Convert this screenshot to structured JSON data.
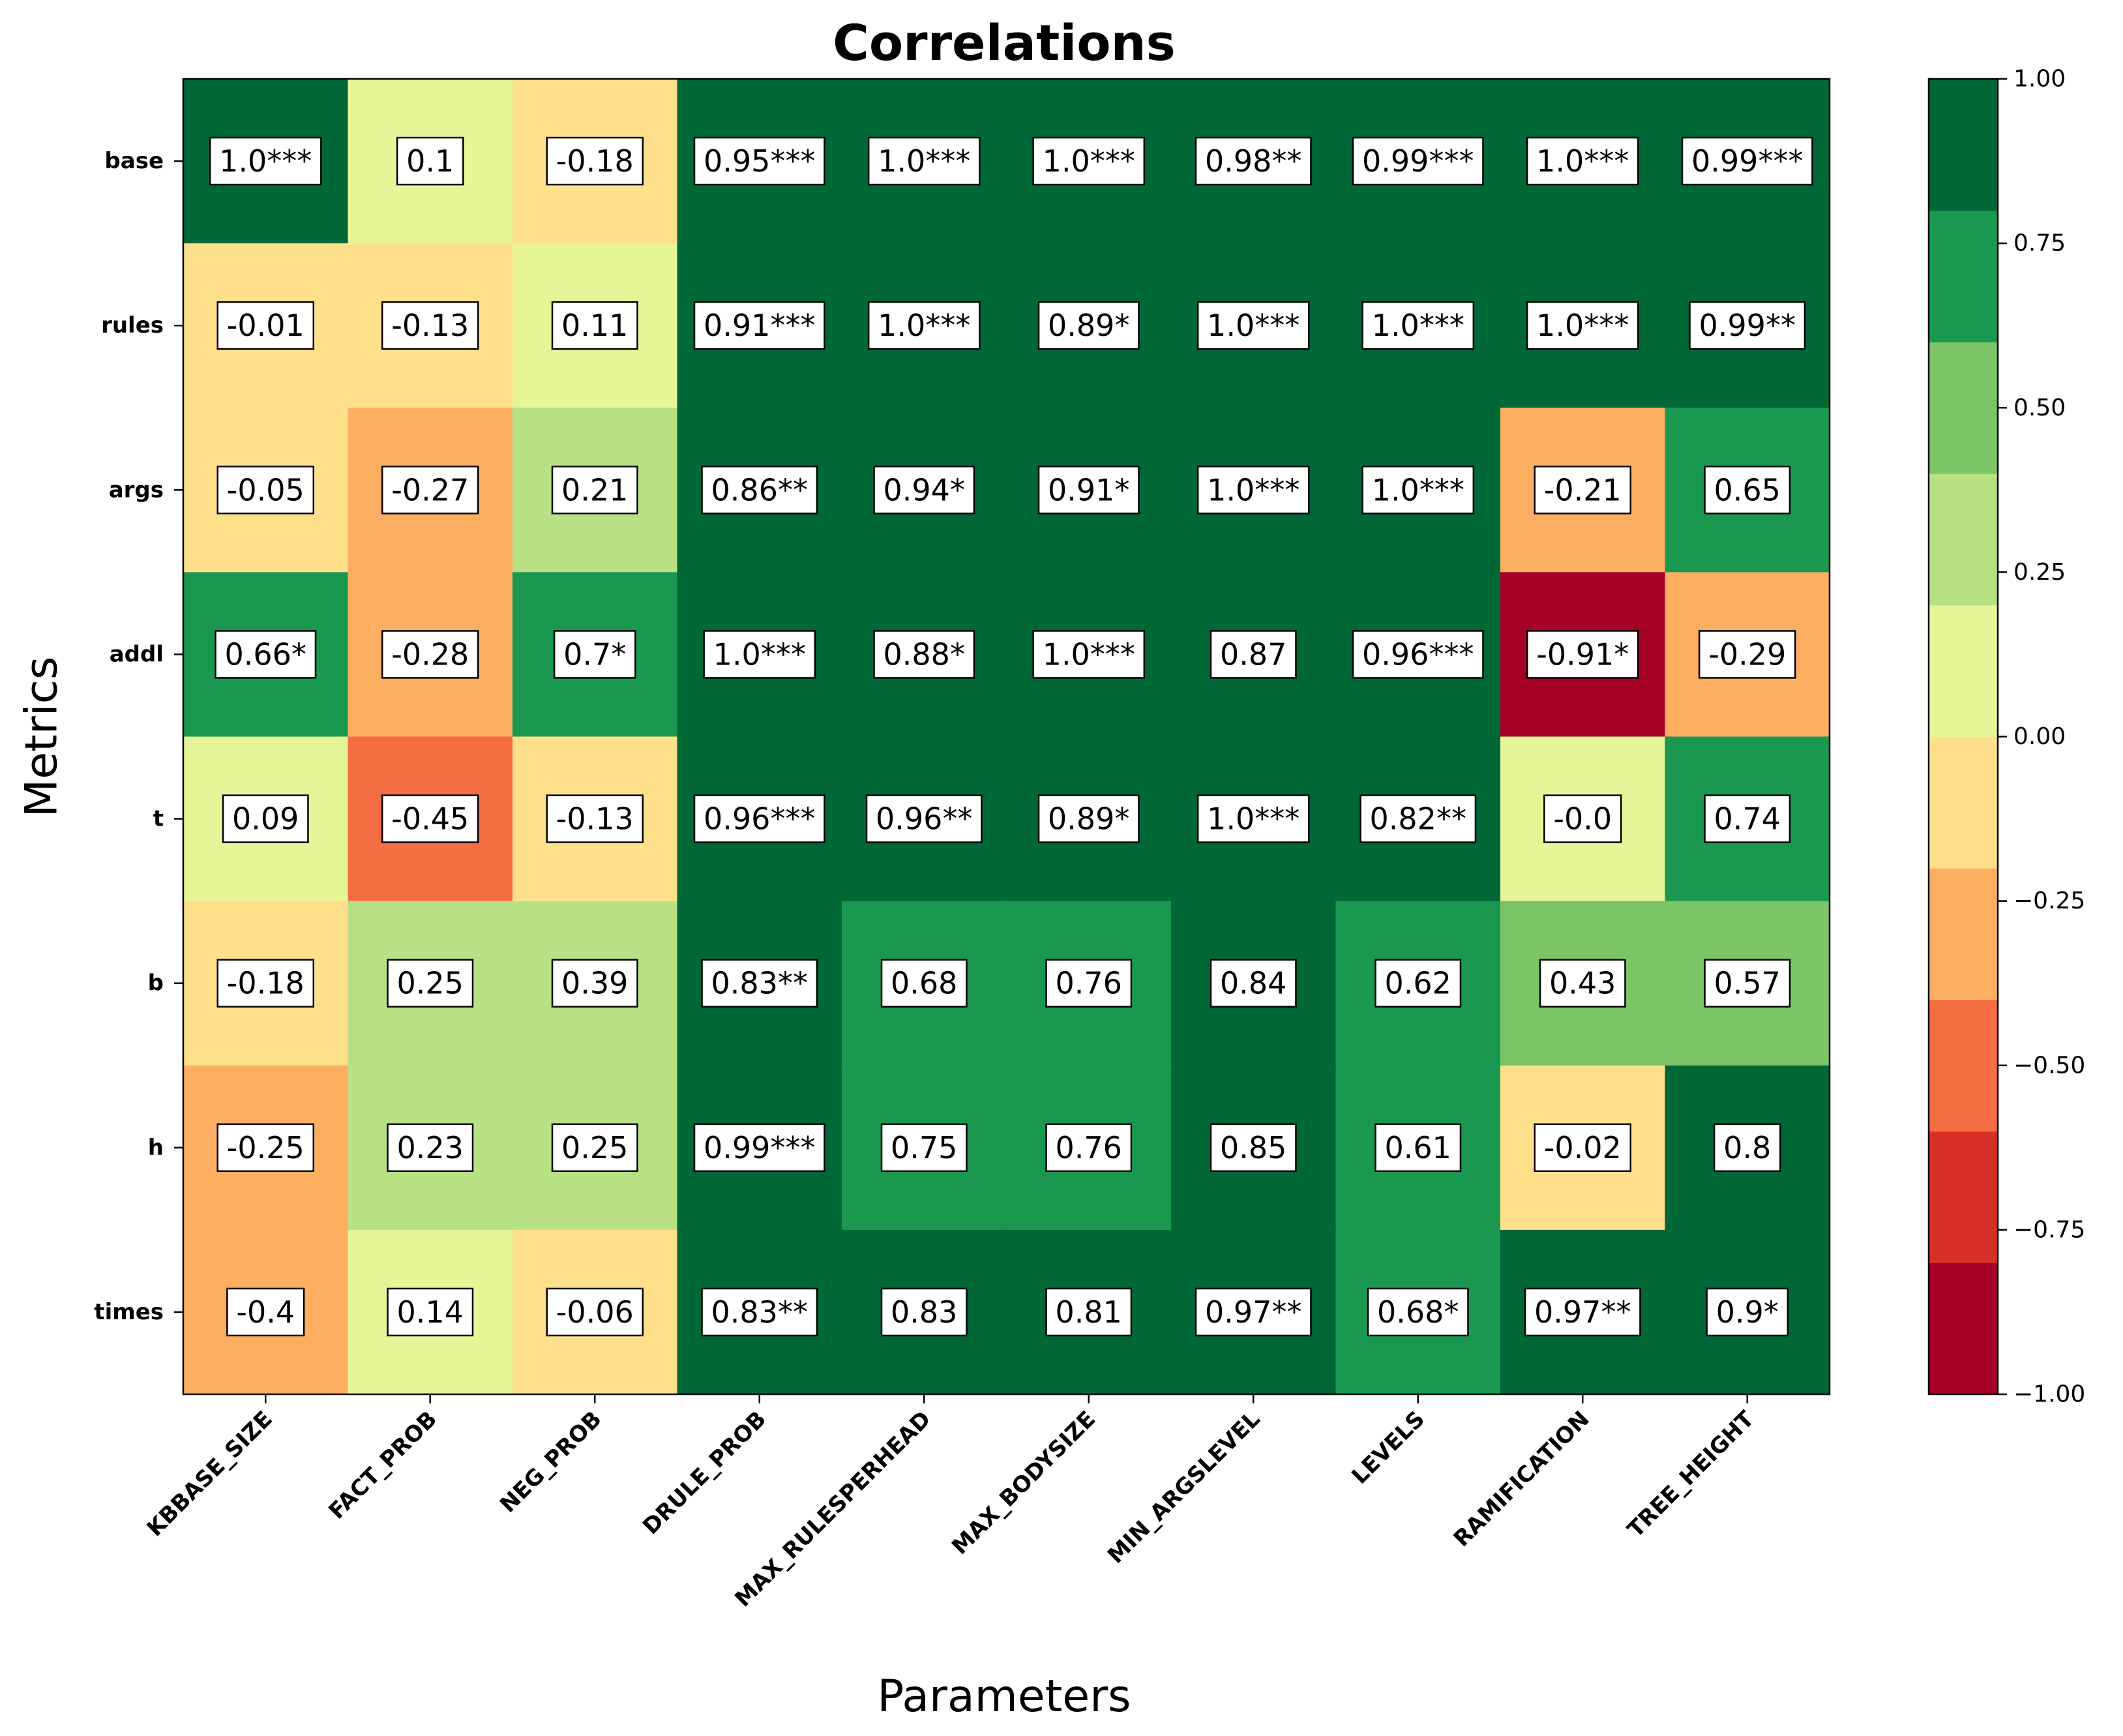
{
  "chart_data": {
    "type": "heatmap",
    "title": "Correlations",
    "xlabel": "Parameters",
    "ylabel": "Metrics",
    "columns": [
      "KBBASE_SIZE",
      "FACT_PROB",
      "NEG_PROB",
      "DRULE_PROB",
      "MAX_RULESPERHEAD",
      "MAX_BODYSIZE",
      "MIN_ARGSLEVEL",
      "LEVELS",
      "RAMIFICATION",
      "TREE_HEIGHT"
    ],
    "rows": [
      "base",
      "rules",
      "args",
      "addl",
      "t",
      "b",
      "h",
      "times"
    ],
    "values": [
      [
        1.0,
        0.1,
        -0.18,
        0.95,
        1.0,
        1.0,
        0.98,
        0.99,
        1.0,
        0.99
      ],
      [
        -0.01,
        -0.13,
        0.11,
        0.91,
        1.0,
        0.89,
        1.0,
        1.0,
        1.0,
        0.99
      ],
      [
        -0.05,
        -0.27,
        0.21,
        0.86,
        0.94,
        0.91,
        1.0,
        1.0,
        -0.21,
        0.65
      ],
      [
        0.66,
        -0.28,
        0.7,
        1.0,
        0.88,
        1.0,
        0.87,
        0.96,
        -0.91,
        -0.29
      ],
      [
        0.09,
        -0.45,
        -0.13,
        0.96,
        0.96,
        0.89,
        1.0,
        0.82,
        -0.0,
        0.74
      ],
      [
        -0.18,
        0.25,
        0.39,
        0.83,
        0.68,
        0.76,
        0.84,
        0.62,
        0.43,
        0.57
      ],
      [
        -0.25,
        0.23,
        0.25,
        0.99,
        0.75,
        0.76,
        0.85,
        0.61,
        -0.02,
        0.8
      ],
      [
        -0.4,
        0.14,
        -0.06,
        0.83,
        0.83,
        0.81,
        0.97,
        0.68,
        0.97,
        0.9
      ]
    ],
    "labels": [
      [
        "1.0***",
        "0.1",
        "-0.18",
        "0.95***",
        "1.0***",
        "1.0***",
        "0.98**",
        "0.99***",
        "1.0***",
        "0.99***"
      ],
      [
        "-0.01",
        "-0.13",
        "0.11",
        "0.91***",
        "1.0***",
        "0.89*",
        "1.0***",
        "1.0***",
        "1.0***",
        "0.99**"
      ],
      [
        "-0.05",
        "-0.27",
        "0.21",
        "0.86**",
        "0.94*",
        "0.91*",
        "1.0***",
        "1.0***",
        "-0.21",
        "0.65"
      ],
      [
        "0.66*",
        "-0.28",
        "0.7*",
        "1.0***",
        "0.88*",
        "1.0***",
        "0.87",
        "0.96***",
        "-0.91*",
        "-0.29"
      ],
      [
        "0.09",
        "-0.45",
        "-0.13",
        "0.96***",
        "0.96**",
        "0.89*",
        "1.0***",
        "0.82**",
        "-0.0",
        "0.74"
      ],
      [
        "-0.18",
        "0.25",
        "0.39",
        "0.83**",
        "0.68",
        "0.76",
        "0.84",
        "0.62",
        "0.43",
        "0.57"
      ],
      [
        "-0.25",
        "0.23",
        "0.25",
        "0.99***",
        "0.75",
        "0.76",
        "0.85",
        "0.61",
        "-0.02",
        "0.8"
      ],
      [
        "-0.4",
        "0.14",
        "-0.06",
        "0.83**",
        "0.83",
        "0.81",
        "0.97**",
        "0.68*",
        "0.97**",
        "0.9*"
      ]
    ],
    "colorbar": {
      "range": [
        -1.0,
        1.0
      ],
      "ticks": [
        "1.00",
        "0.75",
        "0.50",
        "0.25",
        "0.00",
        "−0.25",
        "−0.50",
        "−0.75",
        "−1.00"
      ],
      "tick_values": [
        1.0,
        0.75,
        0.5,
        0.25,
        0.0,
        -0.25,
        -0.5,
        -0.75,
        -1.0
      ],
      "bins": 10,
      "colors": [
        "#a50026",
        "#d73027",
        "#f46d43",
        "#fdae61",
        "#fee08b",
        "#e6f598",
        "#b8e186",
        "#7bc567",
        "#1a9850",
        "#006837"
      ]
    }
  }
}
